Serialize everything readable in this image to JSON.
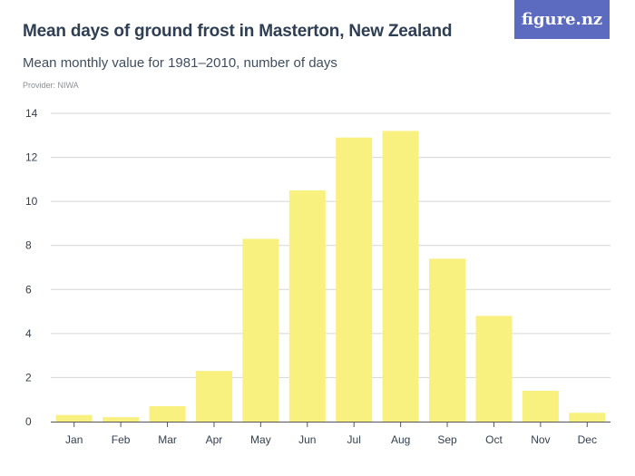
{
  "header": {
    "title": "Mean days of ground frost in Masterton, New Zealand",
    "subtitle": "Mean monthly value for 1981–2010, number of days",
    "provider": "Provider: NIWA",
    "logo_text": "figure.nz"
  },
  "colors": {
    "bar": "#f8f07f",
    "gridline": "#d6d6d6",
    "axis": "#555555",
    "logo_bg": "#5c6bc0"
  },
  "chart_data": {
    "type": "bar",
    "categories": [
      "Jan",
      "Feb",
      "Mar",
      "Apr",
      "May",
      "Jun",
      "Jul",
      "Aug",
      "Sep",
      "Oct",
      "Nov",
      "Dec"
    ],
    "values": [
      0.3,
      0.2,
      0.7,
      2.3,
      8.3,
      10.5,
      12.9,
      13.2,
      7.4,
      4.8,
      1.4,
      0.4
    ],
    "ylim": [
      0,
      14
    ],
    "yticks": [
      0,
      2,
      4,
      6,
      8,
      10,
      12,
      14
    ],
    "grid": true,
    "legend": "none"
  }
}
